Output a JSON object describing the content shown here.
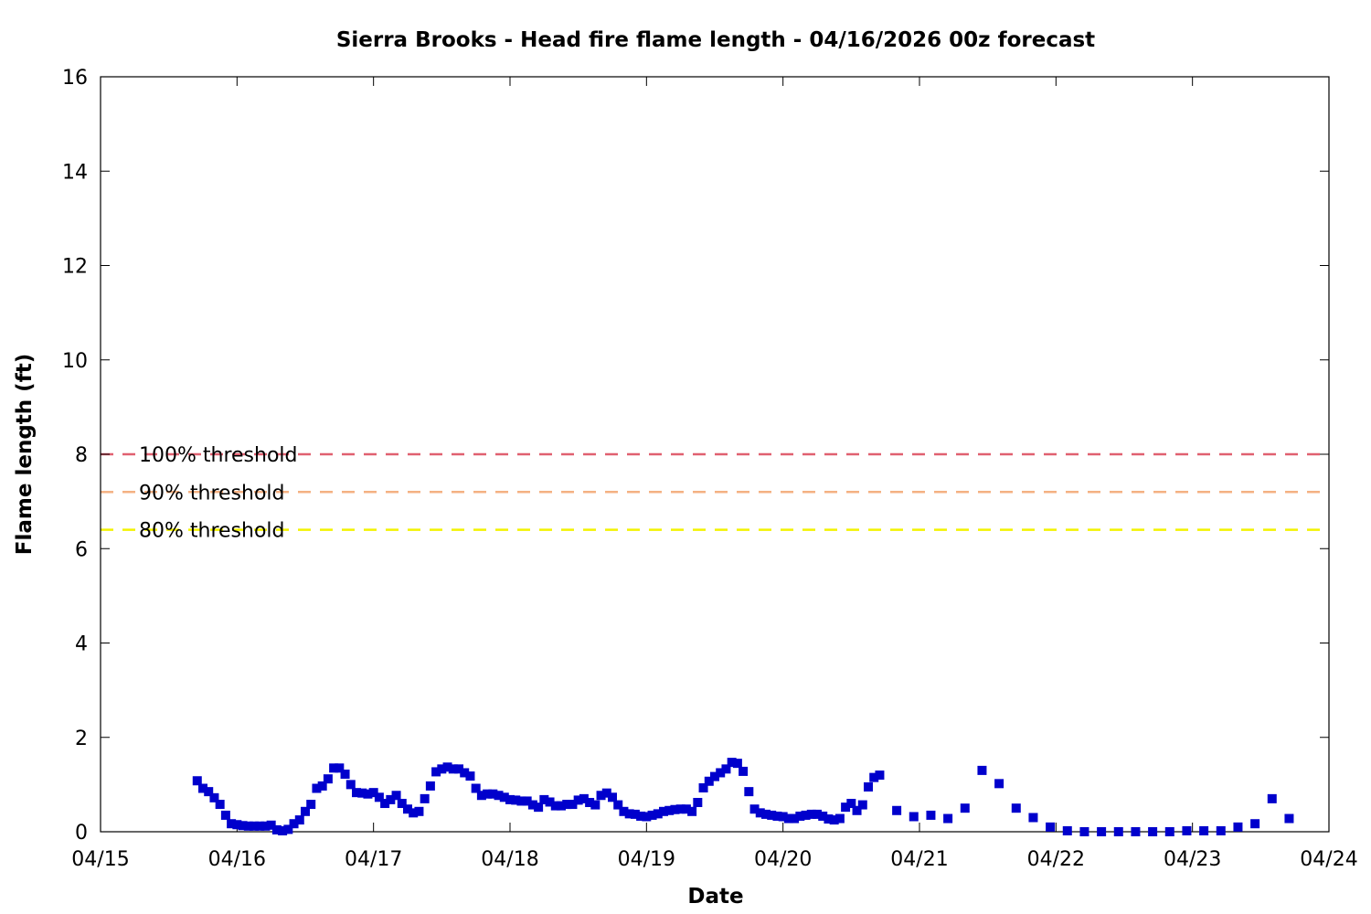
{
  "chart_data": {
    "type": "scatter",
    "title": "Sierra Brooks - Head fire flame length - 04/16/2026 00z forecast",
    "xlabel": "Date",
    "ylabel": "Flame length (ft)",
    "xlim": [
      "04/15",
      "04/24"
    ],
    "ylim": [
      0,
      16
    ],
    "x_ticks": [
      "04/15",
      "04/16",
      "04/17",
      "04/18",
      "04/19",
      "04/20",
      "04/21",
      "04/22",
      "04/23",
      "04/24"
    ],
    "y_ticks": [
      0,
      2,
      4,
      6,
      8,
      10,
      12,
      14,
      16
    ],
    "grid": false,
    "legend_position": "left",
    "thresholds": [
      {
        "name": "100% threshold",
        "value": 8.0,
        "color": "#e06070"
      },
      {
        "name": "90% threshold",
        "value": 7.2,
        "color": "#f4b183"
      },
      {
        "name": "80% threshold",
        "value": 6.4,
        "color": "#f2f200"
      }
    ],
    "series": [
      {
        "color": "#0000cc",
        "points": [
          [
            "04/15 17:00",
            1.08
          ],
          [
            "04/15 18:00",
            0.92
          ],
          [
            "04/15 19:00",
            0.85
          ],
          [
            "04/15 20:00",
            0.72
          ],
          [
            "04/15 21:00",
            0.58
          ],
          [
            "04/15 22:00",
            0.35
          ],
          [
            "04/15 23:00",
            0.17
          ],
          [
            "04/16 00:00",
            0.15
          ],
          [
            "04/16 01:00",
            0.13
          ],
          [
            "04/16 02:00",
            0.12
          ],
          [
            "04/16 03:00",
            0.12
          ],
          [
            "04/16 04:00",
            0.12
          ],
          [
            "04/16 05:00",
            0.12
          ],
          [
            "04/16 06:00",
            0.14
          ],
          [
            "04/16 07:00",
            0.04
          ],
          [
            "04/16 08:00",
            0.02
          ],
          [
            "04/16 09:00",
            0.05
          ],
          [
            "04/16 10:00",
            0.17
          ],
          [
            "04/16 11:00",
            0.25
          ],
          [
            "04/16 12:00",
            0.43
          ],
          [
            "04/16 13:00",
            0.58
          ],
          [
            "04/16 14:00",
            0.92
          ],
          [
            "04/16 15:00",
            0.97
          ],
          [
            "04/16 16:00",
            1.12
          ],
          [
            "04/16 17:00",
            1.35
          ],
          [
            "04/16 18:00",
            1.35
          ],
          [
            "04/16 19:00",
            1.22
          ],
          [
            "04/16 20:00",
            1.0
          ],
          [
            "04/16 21:00",
            0.83
          ],
          [
            "04/16 22:00",
            0.82
          ],
          [
            "04/16 23:00",
            0.8
          ],
          [
            "04/17 00:00",
            0.83
          ],
          [
            "04/17 01:00",
            0.73
          ],
          [
            "04/17 02:00",
            0.6
          ],
          [
            "04/17 03:00",
            0.68
          ],
          [
            "04/17 04:00",
            0.77
          ],
          [
            "04/17 05:00",
            0.6
          ],
          [
            "04/17 06:00",
            0.48
          ],
          [
            "04/17 07:00",
            0.4
          ],
          [
            "04/17 08:00",
            0.43
          ],
          [
            "04/17 09:00",
            0.7
          ],
          [
            "04/17 10:00",
            0.97
          ],
          [
            "04/17 11:00",
            1.27
          ],
          [
            "04/17 12:00",
            1.33
          ],
          [
            "04/17 13:00",
            1.37
          ],
          [
            "04/17 14:00",
            1.33
          ],
          [
            "04/17 15:00",
            1.33
          ],
          [
            "04/17 16:00",
            1.25
          ],
          [
            "04/17 17:00",
            1.18
          ],
          [
            "04/17 18:00",
            0.92
          ],
          [
            "04/17 19:00",
            0.77
          ],
          [
            "04/17 20:00",
            0.8
          ],
          [
            "04/17 21:00",
            0.8
          ],
          [
            "04/17 22:00",
            0.77
          ],
          [
            "04/17 23:00",
            0.73
          ],
          [
            "04/18 00:00",
            0.68
          ],
          [
            "04/18 01:00",
            0.67
          ],
          [
            "04/18 02:00",
            0.65
          ],
          [
            "04/18 03:00",
            0.65
          ],
          [
            "04/18 04:00",
            0.57
          ],
          [
            "04/18 05:00",
            0.52
          ],
          [
            "04/18 06:00",
            0.68
          ],
          [
            "04/18 07:00",
            0.63
          ],
          [
            "04/18 08:00",
            0.55
          ],
          [
            "04/18 09:00",
            0.55
          ],
          [
            "04/18 10:00",
            0.58
          ],
          [
            "04/18 11:00",
            0.58
          ],
          [
            "04/18 12:00",
            0.67
          ],
          [
            "04/18 13:00",
            0.7
          ],
          [
            "04/18 14:00",
            0.62
          ],
          [
            "04/18 15:00",
            0.57
          ],
          [
            "04/18 16:00",
            0.77
          ],
          [
            "04/18 17:00",
            0.82
          ],
          [
            "04/18 18:00",
            0.73
          ],
          [
            "04/18 19:00",
            0.57
          ],
          [
            "04/18 20:00",
            0.43
          ],
          [
            "04/18 21:00",
            0.38
          ],
          [
            "04/18 22:00",
            0.37
          ],
          [
            "04/18 23:00",
            0.33
          ],
          [
            "04/19 00:00",
            0.32
          ],
          [
            "04/19 01:00",
            0.35
          ],
          [
            "04/19 02:00",
            0.38
          ],
          [
            "04/19 03:00",
            0.43
          ],
          [
            "04/19 04:00",
            0.45
          ],
          [
            "04/19 05:00",
            0.47
          ],
          [
            "04/19 06:00",
            0.48
          ],
          [
            "04/19 07:00",
            0.48
          ],
          [
            "04/19 08:00",
            0.43
          ],
          [
            "04/19 09:00",
            0.62
          ],
          [
            "04/19 10:00",
            0.93
          ],
          [
            "04/19 11:00",
            1.07
          ],
          [
            "04/19 12:00",
            1.17
          ],
          [
            "04/19 13:00",
            1.25
          ],
          [
            "04/19 14:00",
            1.33
          ],
          [
            "04/19 15:00",
            1.47
          ],
          [
            "04/19 16:00",
            1.45
          ],
          [
            "04/19 17:00",
            1.28
          ],
          [
            "04/19 18:00",
            0.85
          ],
          [
            "04/19 19:00",
            0.48
          ],
          [
            "04/19 20:00",
            0.4
          ],
          [
            "04/19 21:00",
            0.37
          ],
          [
            "04/19 22:00",
            0.35
          ],
          [
            "04/19 23:00",
            0.33
          ],
          [
            "04/20 00:00",
            0.32
          ],
          [
            "04/20 01:00",
            0.28
          ],
          [
            "04/20 02:00",
            0.28
          ],
          [
            "04/20 03:00",
            0.33
          ],
          [
            "04/20 04:00",
            0.35
          ],
          [
            "04/20 05:00",
            0.37
          ],
          [
            "04/20 06:00",
            0.37
          ],
          [
            "04/20 07:00",
            0.33
          ],
          [
            "04/20 08:00",
            0.27
          ],
          [
            "04/20 09:00",
            0.25
          ],
          [
            "04/20 10:00",
            0.28
          ],
          [
            "04/20 11:00",
            0.52
          ],
          [
            "04/20 12:00",
            0.6
          ],
          [
            "04/20 13:00",
            0.45
          ],
          [
            "04/20 14:00",
            0.57
          ],
          [
            "04/20 15:00",
            0.95
          ],
          [
            "04/20 16:00",
            1.15
          ],
          [
            "04/20 17:00",
            1.2
          ],
          [
            "04/20 20:00",
            0.45
          ],
          [
            "04/20 23:00",
            0.32
          ],
          [
            "04/21 02:00",
            0.35
          ],
          [
            "04/21 05:00",
            0.28
          ],
          [
            "04/21 08:00",
            0.5
          ],
          [
            "04/21 11:00",
            1.3
          ],
          [
            "04/21 14:00",
            1.02
          ],
          [
            "04/21 17:00",
            0.5
          ],
          [
            "04/21 20:00",
            0.3
          ],
          [
            "04/21 23:00",
            0.1
          ],
          [
            "04/22 02:00",
            0.02
          ],
          [
            "04/22 05:00",
            0.0
          ],
          [
            "04/22 08:00",
            0.0
          ],
          [
            "04/22 11:00",
            0.0
          ],
          [
            "04/22 14:00",
            0.0
          ],
          [
            "04/22 17:00",
            0.0
          ],
          [
            "04/22 20:00",
            0.0
          ],
          [
            "04/22 23:00",
            0.02
          ],
          [
            "04/23 02:00",
            0.02
          ],
          [
            "04/23 05:00",
            0.02
          ],
          [
            "04/23 08:00",
            0.1
          ],
          [
            "04/23 11:00",
            0.17
          ],
          [
            "04/23 14:00",
            0.7
          ],
          [
            "04/23 17:00",
            0.28
          ]
        ]
      }
    ]
  }
}
